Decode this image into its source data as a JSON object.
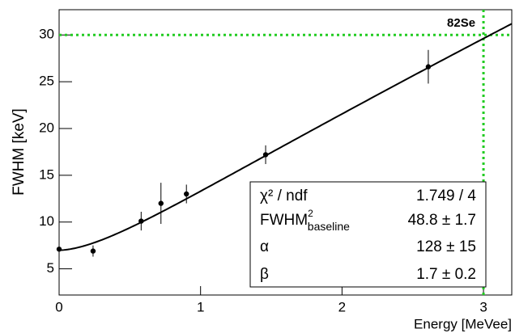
{
  "chart_data": {
    "type": "scatter",
    "x_label": "Energy [MeVee]",
    "y_label": "FWHM [keV]",
    "xlim": [
      0,
      3.2
    ],
    "ylim": [
      2.2,
      32.7
    ],
    "xticks": [
      0,
      1,
      2,
      3
    ],
    "yticks": [
      5,
      10,
      15,
      20,
      25,
      30
    ],
    "series": [
      {
        "color": "#000000",
        "x": [
          0,
          0.24,
          0.58,
          0.72,
          0.9,
          1.46,
          2.61
        ],
        "values": [
          7.1,
          6.9,
          10.1,
          12.0,
          13.0,
          17.2,
          26.6
        ],
        "errors": [
          0,
          0.6,
          1.0,
          2.2,
          1.0,
          1.0,
          1.8
        ]
      }
    ],
    "fit": {
      "color": "#000000",
      "chi2_label": "χ² / ndf",
      "chi2_value": "1.749 / 4",
      "params": [
        {
          "name": "FWHM",
          "sup": "2",
          "sub": "baseline",
          "value": 48.8,
          "error": 1.7,
          "value_label": "48.8 ± 1.7"
        },
        {
          "name": "α",
          "value": 128,
          "error": 15,
          "value_label": "128 ± 15"
        },
        {
          "name": "β",
          "value": 1.7,
          "error": 0.2,
          "value_label": "1.7 ± 0.2"
        }
      ]
    },
    "reference": {
      "label": "82Se",
      "x": 3,
      "y": 30,
      "color": "#22cc22"
    }
  }
}
